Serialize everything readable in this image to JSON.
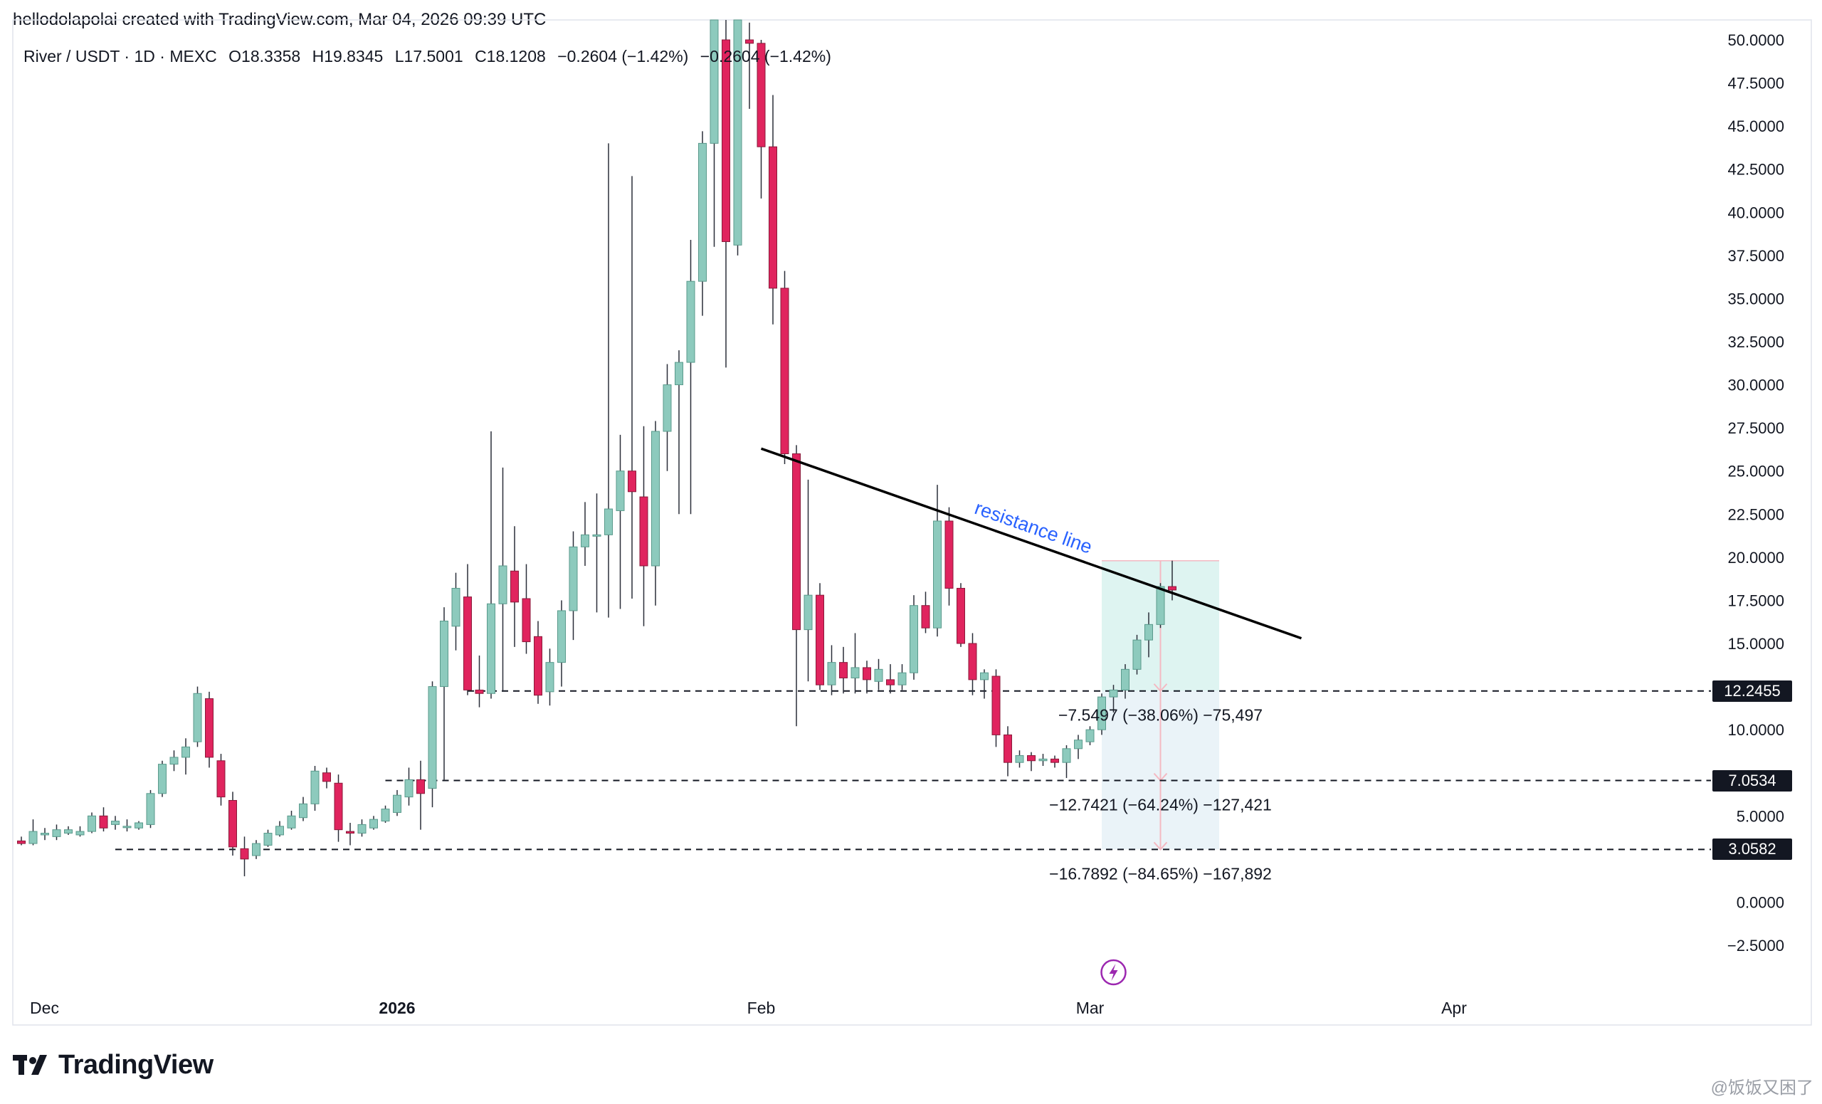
{
  "header": {
    "credit": "hellodolapolai created with TradingView.com, Mar 04, 2026 09:39 UTC"
  },
  "legend": {
    "symbol": "River / USDT · 1D · MEXC",
    "open": "O18.3358",
    "high": "H19.8345",
    "low": "L17.5001",
    "close": "C18.1208",
    "change": "−0.2604 (−1.42%)",
    "change_repeat": "−0.2604 (−1.42%)"
  },
  "colors": {
    "up": "#8dcabd",
    "up_border": "#5a9a8c",
    "down": "#e0245e",
    "down_border": "#8a1a3a",
    "wick": "#2a2e39",
    "trendline": "#000000",
    "annotation": "#2962ff",
    "range_fill": "#d6f1ee",
    "range_fill_lower": "#e8f2f7",
    "range_arrow": "#f4b9c2",
    "icon_purple": "#9c27b0"
  },
  "chart_data": {
    "type": "candlestick",
    "y_axis": {
      "position": "right",
      "ylim": [
        -2.5,
        50
      ],
      "ticks": [
        50,
        47.5,
        45,
        42.5,
        40,
        37.5,
        35,
        32.5,
        30,
        27.5,
        25,
        22.5,
        20,
        17.5,
        15,
        10,
        5,
        0,
        -2.5
      ],
      "tick_labels": [
        "50.0000",
        "47.5000",
        "45.0000",
        "42.5000",
        "40.0000",
        "37.5000",
        "35.0000",
        "32.5000",
        "30.0000",
        "27.5000",
        "25.0000",
        "22.5000",
        "20.0000",
        "17.5000",
        "15.0000",
        "10.0000",
        "5.0000",
        "0.0000",
        "−2.5000"
      ]
    },
    "x_axis": {
      "labels": [
        {
          "text": "Dec",
          "date": "2025-12-01"
        },
        {
          "text": "2026",
          "date": "2026-01-01",
          "bold": true
        },
        {
          "text": "Feb",
          "date": "2026-02-01"
        },
        {
          "text": "Mar",
          "date": "2026-03-01"
        },
        {
          "text": "Apr",
          "date": "2026-04-01"
        }
      ]
    },
    "start_date": "2025-11-30",
    "candles": [
      [
        3.55,
        3.8,
        3.3,
        3.4
      ],
      [
        3.4,
        4.8,
        3.3,
        4.1
      ],
      [
        3.9,
        4.3,
        3.6,
        4.0
      ],
      [
        3.8,
        4.5,
        3.6,
        4.2
      ],
      [
        4.0,
        4.4,
        3.9,
        4.2
      ],
      [
        3.9,
        4.4,
        3.8,
        4.1
      ],
      [
        4.1,
        5.2,
        4.0,
        5.0
      ],
      [
        5.0,
        5.5,
        4.1,
        4.3
      ],
      [
        4.5,
        5.0,
        4.2,
        4.7
      ],
      [
        4.4,
        4.8,
        4.1,
        4.4
      ],
      [
        4.3,
        4.7,
        4.2,
        4.6
      ],
      [
        4.5,
        6.5,
        4.3,
        6.3
      ],
      [
        6.3,
        8.2,
        6.1,
        8.0
      ],
      [
        8.0,
        8.8,
        7.6,
        8.4
      ],
      [
        8.4,
        9.5,
        7.4,
        9.0
      ],
      [
        9.3,
        12.5,
        9.0,
        12.1
      ],
      [
        11.8,
        12.2,
        7.8,
        8.4
      ],
      [
        8.2,
        8.6,
        5.6,
        6.1
      ],
      [
        5.9,
        6.4,
        2.7,
        3.2
      ],
      [
        3.1,
        3.8,
        1.5,
        2.5
      ],
      [
        2.7,
        3.6,
        2.5,
        3.4
      ],
      [
        3.3,
        4.2,
        3.2,
        4.0
      ],
      [
        3.9,
        4.7,
        3.8,
        4.4
      ],
      [
        4.3,
        5.3,
        4.2,
        5.0
      ],
      [
        4.9,
        6.1,
        4.7,
        5.7
      ],
      [
        5.7,
        7.9,
        5.3,
        7.6
      ],
      [
        7.5,
        7.8,
        6.6,
        7.0
      ],
      [
        6.9,
        7.4,
        3.5,
        4.2
      ],
      [
        4.1,
        4.6,
        3.3,
        4.0
      ],
      [
        4.0,
        4.8,
        3.8,
        4.5
      ],
      [
        4.3,
        5.0,
        4.2,
        4.8
      ],
      [
        4.7,
        5.6,
        4.6,
        5.4
      ],
      [
        5.2,
        6.5,
        5.0,
        6.2
      ],
      [
        6.1,
        7.8,
        5.6,
        7.1
      ],
      [
        7.1,
        8.2,
        4.2,
        6.3
      ],
      [
        6.6,
        12.8,
        5.5,
        12.5
      ],
      [
        12.5,
        17.1,
        7.1,
        16.3
      ],
      [
        16.0,
        19.1,
        14.6,
        18.2
      ],
      [
        17.7,
        19.6,
        12.0,
        12.3
      ],
      [
        12.3,
        14.3,
        11.3,
        12.1
      ],
      [
        12.1,
        27.3,
        11.8,
        17.3
      ],
      [
        17.3,
        25.2,
        12.2,
        19.5
      ],
      [
        19.2,
        21.8,
        14.8,
        17.4
      ],
      [
        17.6,
        19.6,
        14.4,
        15.1
      ],
      [
        15.4,
        16.3,
        11.5,
        12.0
      ],
      [
        12.2,
        14.7,
        11.4,
        13.9
      ],
      [
        13.9,
        17.5,
        12.5,
        16.9
      ],
      [
        16.9,
        21.5,
        15.2,
        20.6
      ],
      [
        20.6,
        23.2,
        19.5,
        21.3
      ],
      [
        21.3,
        23.7,
        16.8,
        21.3
      ],
      [
        21.3,
        44.0,
        16.5,
        22.8
      ],
      [
        22.7,
        27.1,
        17.0,
        25.0
      ],
      [
        25.0,
        42.1,
        17.6,
        23.8
      ],
      [
        23.5,
        27.6,
        16.0,
        19.5
      ],
      [
        19.5,
        27.9,
        17.2,
        27.3
      ],
      [
        27.3,
        31.2,
        25.0,
        30.0
      ],
      [
        30.0,
        32.0,
        22.5,
        31.3
      ],
      [
        31.3,
        38.4,
        22.5,
        36.0
      ],
      [
        36.0,
        44.7,
        34.0,
        44.0
      ],
      [
        44.0,
        53.0,
        38.0,
        52.5
      ],
      [
        50.0,
        52.0,
        31.0,
        38.3
      ],
      [
        38.1,
        53.0,
        37.5,
        52.0
      ],
      [
        50.0,
        51.0,
        46.0,
        49.8
      ],
      [
        49.8,
        50.0,
        40.8,
        43.8
      ],
      [
        43.8,
        46.8,
        33.5,
        35.6
      ],
      [
        35.6,
        36.6,
        25.4,
        26.0
      ],
      [
        26.0,
        26.5,
        10.2,
        15.8
      ],
      [
        15.8,
        24.5,
        12.8,
        17.8
      ],
      [
        17.8,
        18.5,
        12.3,
        12.6
      ],
      [
        12.6,
        14.9,
        12.0,
        13.9
      ],
      [
        13.9,
        14.8,
        12.1,
        13.0
      ],
      [
        13.0,
        15.6,
        12.1,
        13.6
      ],
      [
        13.6,
        14.0,
        12.1,
        12.9
      ],
      [
        12.8,
        14.1,
        12.3,
        13.5
      ],
      [
        12.9,
        13.8,
        12.1,
        12.6
      ],
      [
        12.6,
        13.8,
        12.3,
        13.3
      ],
      [
        13.3,
        17.8,
        12.9,
        17.2
      ],
      [
        17.2,
        18.0,
        15.6,
        15.9
      ],
      [
        15.9,
        24.2,
        15.4,
        22.1
      ],
      [
        22.1,
        22.9,
        17.2,
        18.2
      ],
      [
        18.2,
        18.5,
        14.8,
        15.0
      ],
      [
        15.0,
        15.6,
        12.0,
        12.9
      ],
      [
        12.9,
        13.5,
        11.8,
        13.3
      ],
      [
        13.1,
        13.5,
        9.0,
        9.7
      ],
      [
        9.7,
        10.2,
        7.3,
        8.1
      ],
      [
        8.1,
        8.8,
        7.8,
        8.5
      ],
      [
        8.5,
        8.7,
        7.6,
        8.2
      ],
      [
        8.2,
        8.6,
        7.9,
        8.3
      ],
      [
        8.3,
        8.5,
        7.8,
        8.1
      ],
      [
        8.1,
        9.1,
        7.2,
        8.9
      ],
      [
        8.9,
        9.7,
        8.3,
        9.4
      ],
      [
        9.3,
        10.2,
        9.1,
        10.0
      ],
      [
        10.0,
        12.1,
        9.7,
        11.9
      ],
      [
        11.9,
        12.6,
        11.0,
        12.3
      ],
      [
        12.3,
        13.8,
        11.8,
        13.5
      ],
      [
        13.5,
        15.5,
        13.2,
        15.2
      ],
      [
        15.2,
        16.8,
        14.2,
        16.1
      ],
      [
        16.1,
        18.5,
        15.9,
        18.3
      ],
      [
        18.3,
        19.8,
        17.5,
        18.1
      ]
    ],
    "trendline": {
      "label": "resistance line",
      "from": {
        "date": "2026-02-01",
        "price": 26.3
      },
      "to": {
        "date": "2026-03-19",
        "price": 15.3
      }
    },
    "horizontal_levels": [
      {
        "price": 12.2455,
        "label": "12.2455",
        "from_date": "2026-01-07"
      },
      {
        "price": 7.0534,
        "label": "7.0534",
        "from_date": "2025-12-31"
      },
      {
        "price": 3.0582,
        "label": "3.0582",
        "from_date": "2025-12-08"
      }
    ],
    "short_range": {
      "entry": 19.8,
      "from_date": "2026-03-02",
      "to_date": "2026-03-12",
      "measurements": [
        {
          "text": "−7.5497 (−38.06%) −75,497",
          "price": 12.2455
        },
        {
          "text": "−12.7421 (−64.24%) −127,421",
          "price": 7.0534
        },
        {
          "text": "−16.7892 (−84.65%) −167,892",
          "price": 3.0582
        }
      ]
    }
  },
  "branding": {
    "logo_text": "TradingView",
    "watermark": "@饭饭又困了"
  }
}
